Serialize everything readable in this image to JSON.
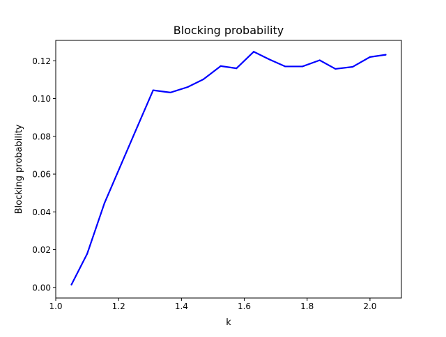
{
  "chart_data": {
    "type": "line",
    "title": "Blocking probability",
    "xlabel": "k",
    "ylabel": "Blocking probability",
    "xlim": [
      1.0,
      2.1
    ],
    "ylim": [
      -0.0056,
      0.1308
    ],
    "xticks": [
      1.0,
      1.2,
      1.4,
      1.6,
      1.8,
      2.0
    ],
    "xtick_labels": [
      "1.0",
      "1.2",
      "1.4",
      "1.6",
      "1.8",
      "2.0"
    ],
    "yticks": [
      0.0,
      0.02,
      0.04,
      0.06,
      0.08,
      0.1,
      0.12
    ],
    "ytick_labels": [
      "0.00",
      "0.02",
      "0.04",
      "0.06",
      "0.08",
      "0.10",
      "0.12"
    ],
    "grid": false,
    "series": [
      {
        "color": "#0000ff",
        "x": [
          1.05,
          1.1,
          1.155,
          1.21,
          1.26,
          1.31,
          1.365,
          1.42,
          1.47,
          1.525,
          1.575,
          1.63,
          1.68,
          1.73,
          1.785,
          1.84,
          1.89,
          1.945,
          2.0,
          2.05
        ],
        "y": [
          0.0015,
          0.0178,
          0.0446,
          0.0659,
          0.0852,
          0.1044,
          0.1032,
          0.1061,
          0.1102,
          0.1172,
          0.116,
          0.1248,
          0.1207,
          0.117,
          0.117,
          0.1203,
          0.1157,
          0.1168,
          0.122,
          0.1232
        ]
      }
    ]
  }
}
